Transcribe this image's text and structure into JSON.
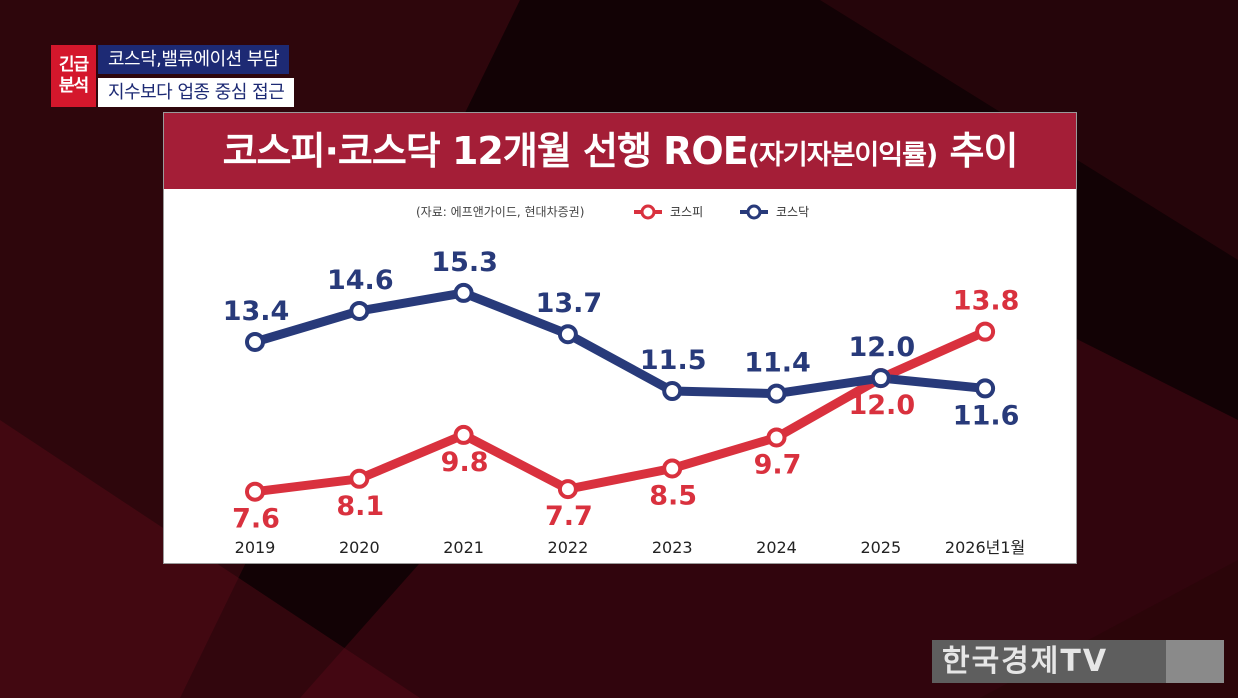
{
  "badge": {
    "line1": "긴급",
    "line2": "분석"
  },
  "headlines": [
    "코스닥,밸류에이션 부담",
    "지수보다 업종 중심 접근"
  ],
  "chart_title": {
    "main": "코스피·코스닥 12개월 선행 ROE",
    "paren": "(자기자본이익률)",
    "tail": " 추이"
  },
  "colors": {
    "kospi": "#d9313e",
    "kosdaq": "#283a7a",
    "title_bar": "#a41e37"
  },
  "chart_data": {
    "type": "line",
    "source": "(자료: 에프앤가이드, 현대차증권)",
    "categories": [
      "2019",
      "2020",
      "2021",
      "2022",
      "2023",
      "2024",
      "2025",
      "2026년1월"
    ],
    "series": [
      {
        "name": "코스피",
        "color": "#d9313e",
        "values": [
          7.6,
          8.1,
          9.8,
          7.7,
          8.5,
          9.7,
          12.0,
          13.8
        ]
      },
      {
        "name": "코스닥",
        "color": "#283a7a",
        "values": [
          13.4,
          14.6,
          15.3,
          13.7,
          11.5,
          11.4,
          12.0,
          11.6
        ]
      }
    ],
    "ylim": [
      6,
      17
    ],
    "grid": false,
    "legend": "top-right"
  },
  "logo": {
    "text": "한국경제TV"
  }
}
